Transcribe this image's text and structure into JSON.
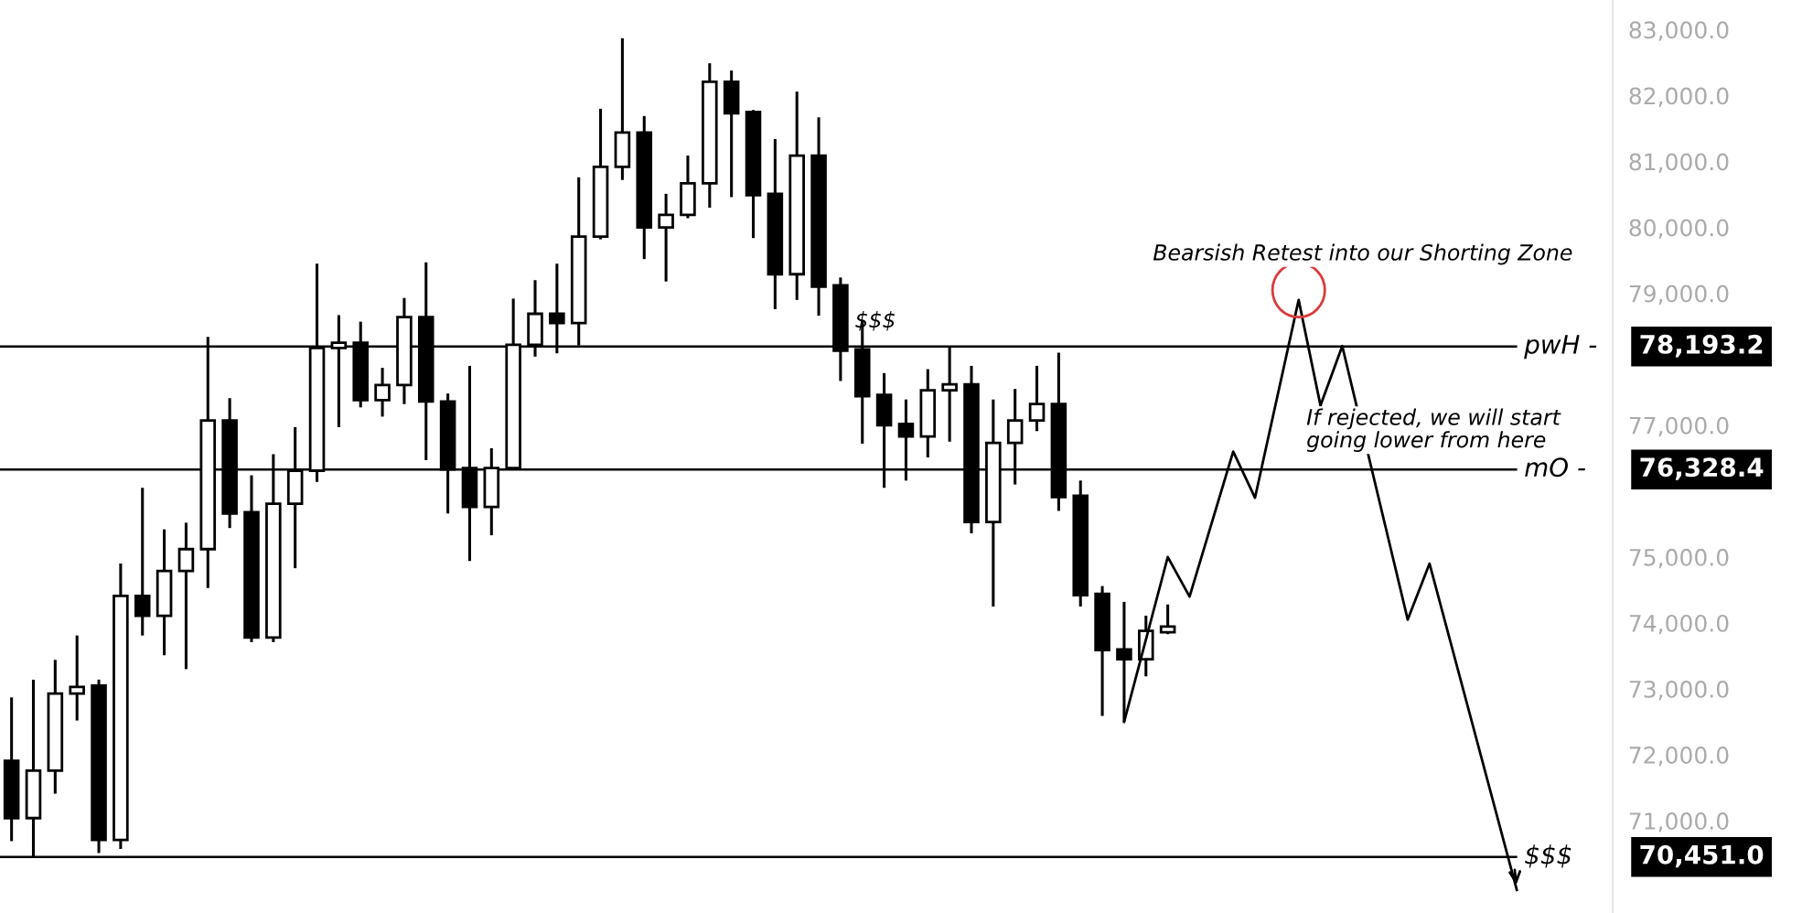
{
  "chart_data": {
    "type": "candlestick",
    "categories": [
      null,
      null,
      null,
      null,
      null,
      null,
      null,
      null,
      null,
      null,
      null,
      null,
      null,
      null,
      null,
      null,
      null,
      null,
      null,
      null,
      null,
      null,
      null,
      null,
      null,
      null,
      null,
      null,
      null,
      null,
      null,
      null,
      null,
      null,
      null,
      null,
      null,
      null,
      null,
      null,
      null,
      null,
      null,
      null,
      null,
      null,
      null,
      null,
      null,
      null,
      null,
      null,
      null,
      null,
      null,
      null,
      null,
      null,
      null,
      null,
      null,
      null,
      null,
      null,
      null,
      null,
      null,
      null,
      null,
      null
    ],
    "series": [
      {
        "type": "candlestick",
        "color": "#000000",
        "ohlc": [
          [
            71910,
            72870,
            70690,
            71040
          ],
          [
            71040,
            73140,
            70451,
            71760
          ],
          [
            71760,
            73440,
            71410,
            72930
          ],
          [
            72930,
            73810,
            72520,
            73030
          ],
          [
            73050,
            73140,
            70510,
            70710
          ],
          [
            70710,
            74900,
            70570,
            74410
          ],
          [
            74410,
            76050,
            73810,
            74110
          ],
          [
            74110,
            75420,
            73510,
            74790
          ],
          [
            74790,
            75520,
            73300,
            75120
          ],
          [
            75120,
            78340,
            74530,
            77070
          ],
          [
            77070,
            77410,
            75440,
            75660
          ],
          [
            75680,
            76240,
            73710,
            73780
          ],
          [
            73780,
            76560,
            73710,
            75810
          ],
          [
            75810,
            76970,
            74830,
            76310
          ],
          [
            76310,
            79450,
            76140,
            78170
          ],
          [
            78170,
            78670,
            76970,
            78250
          ],
          [
            78250,
            78570,
            77270,
            77380
          ],
          [
            77380,
            77870,
            77130,
            77610
          ],
          [
            77610,
            78930,
            77320,
            78640
          ],
          [
            78640,
            79470,
            76470,
            77360
          ],
          [
            77360,
            77480,
            75660,
            76330
          ],
          [
            76350,
            77900,
            74940,
            75760
          ],
          [
            75760,
            76650,
            75330,
            76350
          ],
          [
            76350,
            78920,
            76330,
            78220
          ],
          [
            78220,
            79200,
            78040,
            78690
          ],
          [
            78690,
            79450,
            78090,
            78550
          ],
          [
            78550,
            80760,
            78210,
            79860
          ],
          [
            79860,
            81800,
            79820,
            80920
          ],
          [
            80920,
            82870,
            80720,
            81440
          ],
          [
            81440,
            81690,
            79520,
            80000
          ],
          [
            80000,
            80510,
            79180,
            80190
          ],
          [
            80190,
            81090,
            80140,
            80670
          ],
          [
            80670,
            82490,
            80300,
            82210
          ],
          [
            82210,
            82380,
            80460,
            81730
          ],
          [
            81750,
            81780,
            79840,
            80490
          ],
          [
            80510,
            81340,
            78760,
            79290
          ],
          [
            79290,
            82060,
            78900,
            81090
          ],
          [
            81090,
            81670,
            78660,
            79100
          ],
          [
            79120,
            79240,
            77670,
            78130
          ],
          [
            78150,
            78590,
            76720,
            77440
          ],
          [
            77460,
            77790,
            76050,
            77000
          ],
          [
            77020,
            77390,
            76160,
            76830
          ],
          [
            76830,
            77850,
            76510,
            77530
          ],
          [
            77530,
            78193.2,
            76750,
            77620
          ],
          [
            77620,
            77900,
            75360,
            75530
          ],
          [
            75530,
            77390,
            74250,
            76730
          ],
          [
            76730,
            77550,
            76100,
            77070
          ],
          [
            77070,
            77900,
            76910,
            77320
          ],
          [
            77320,
            78100,
            75700,
            75910
          ],
          [
            75930,
            76160,
            74250,
            74420
          ],
          [
            74440,
            74560,
            72590,
            73590
          ],
          [
            73600,
            74320,
            72500,
            73450
          ],
          [
            73450,
            74110,
            73190,
            73880
          ],
          [
            73860,
            74280,
            73830,
            73945
          ],
          null,
          null,
          null,
          null,
          null,
          null,
          null,
          null,
          null,
          null,
          null,
          null,
          null,
          null,
          null,
          null
        ]
      },
      {
        "type": "line",
        "color": "#000000",
        "values": [
          null,
          null,
          null,
          null,
          null,
          null,
          null,
          null,
          null,
          null,
          null,
          null,
          null,
          null,
          null,
          null,
          null,
          null,
          null,
          null,
          null,
          null,
          null,
          null,
          null,
          null,
          null,
          null,
          null,
          null,
          null,
          null,
          null,
          null,
          null,
          null,
          null,
          null,
          null,
          null,
          null,
          null,
          null,
          null,
          null,
          null,
          null,
          null,
          null,
          null,
          null,
          72500,
          null,
          75000,
          74400,
          null,
          76600,
          75900,
          null,
          78900,
          77300,
          78200,
          null,
          null,
          74050,
          74900,
          null,
          null,
          null,
          69950
        ]
      }
    ],
    "ref_lines": [
      {
        "axis": "y",
        "value": 78193.2,
        "label": "pwH -",
        "color": "#000000"
      },
      {
        "axis": "y",
        "value": 76328.4,
        "label": "mO -",
        "color": "#000000"
      },
      {
        "axis": "y",
        "value": 70451.0,
        "label": "$$$",
        "color": "#000000"
      }
    ],
    "annotations": [
      "Bearsish Retest into our Shorting Zone",
      {
        "text": "$$$",
        "y": 78193.2
      },
      "If rejected, we will start\ngoing lower from here",
      "78,193.2",
      "76,328.4",
      "70,451.0"
    ],
    "ylim": [
      69600,
      83450
    ],
    "yticks": [
      {
        "value": 71000,
        "label": "71,000.0"
      },
      {
        "value": 72000,
        "label": "72,000.0"
      },
      {
        "value": 73000,
        "label": "73,000.0"
      },
      {
        "value": 74000,
        "label": "74,000.0"
      },
      {
        "value": 75000,
        "label": "75,000.0"
      },
      {
        "value": 77000,
        "label": "77,000.0"
      },
      {
        "value": 79000,
        "label": "79,000.0"
      },
      {
        "value": 80000,
        "label": "80,000.0"
      },
      {
        "value": 81000,
        "label": "81,000.0"
      },
      {
        "value": 82000,
        "label": "82,000.0"
      },
      {
        "value": 83000,
        "label": "83,000.0"
      }
    ],
    "tick_labels": "y",
    "grid": false,
    "marker": "none",
    "line_style": "solid"
  }
}
